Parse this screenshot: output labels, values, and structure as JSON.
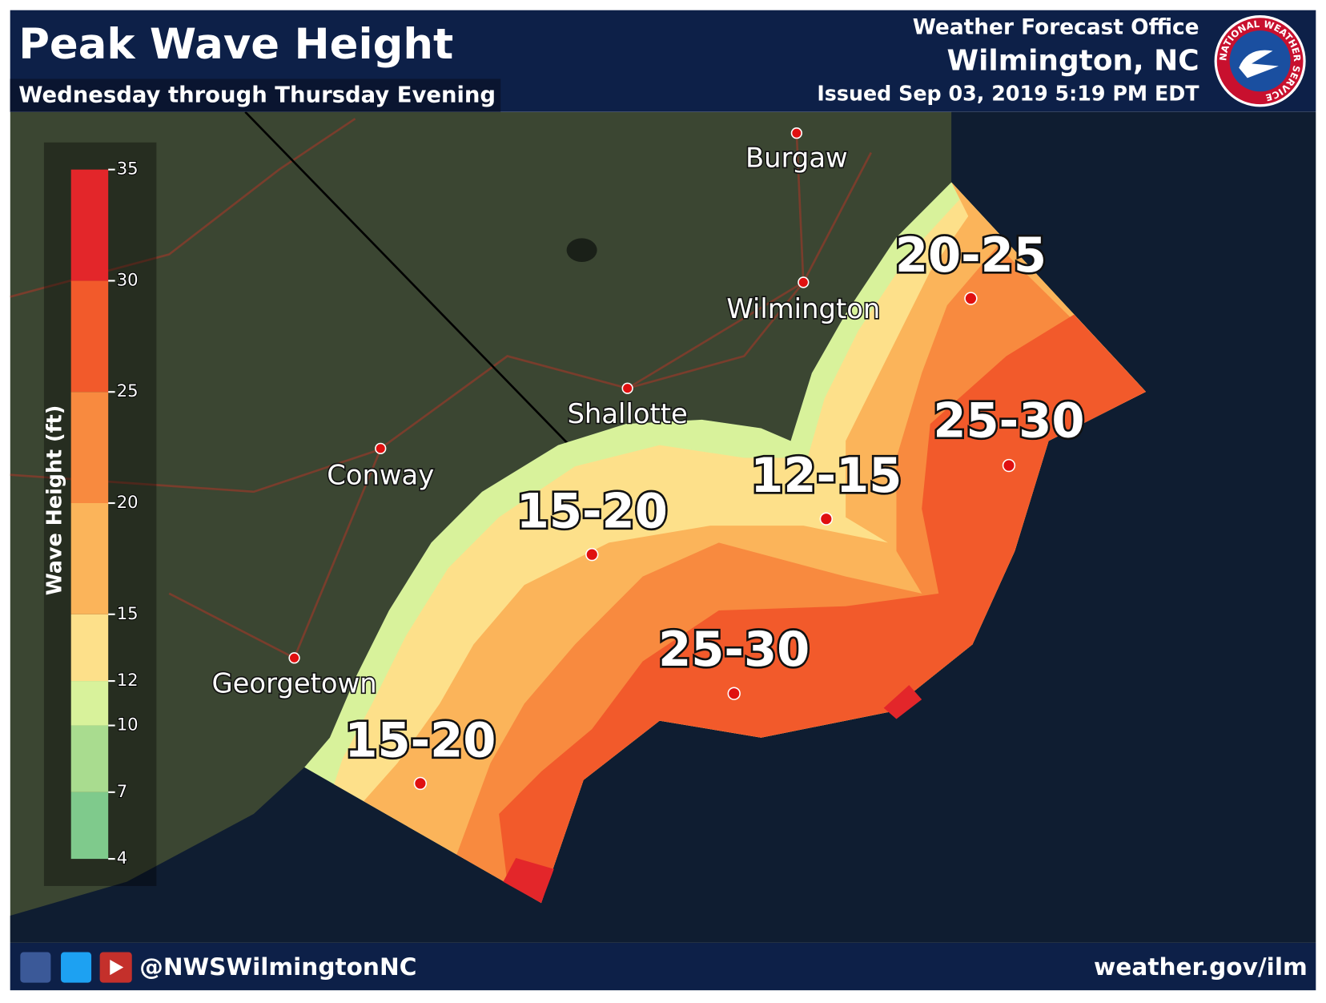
{
  "header": {
    "title": "Peak Wave Height",
    "subtitle": "Wednesday through Thursday Evening",
    "office": "Weather Forecast Office",
    "location": "Wilmington, NC",
    "issued": "Issued Sep 03, 2019 5:19 PM EDT",
    "logo_text": "NATIONAL WEATHER SERVICE"
  },
  "legend": {
    "title": "Wave Height (ft)",
    "ylim": [
      4,
      35
    ],
    "ticks": [
      4,
      7,
      10,
      12,
      15,
      20,
      25,
      30,
      35
    ],
    "colors": [
      "#7fca8c",
      "#a9dc8f",
      "#d8f29b",
      "#fde08a",
      "#fbb45a",
      "#f88a3f",
      "#f25a2b",
      "#e3262a"
    ]
  },
  "cities": [
    "Burgaw",
    "Wilmington",
    "Shallotte",
    "Conway",
    "Georgetown"
  ],
  "zones": [
    "20-25",
    "25-30",
    "12-15",
    "15-20",
    "25-30",
    "15-20"
  ],
  "footer": {
    "handle": "@NWSWilmingtonNC",
    "url": "weather.gov/ilm"
  }
}
